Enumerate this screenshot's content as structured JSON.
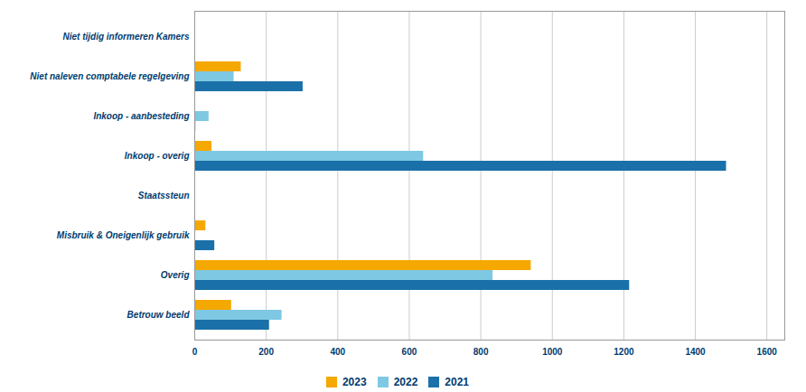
{
  "chart_data": {
    "type": "bar",
    "orientation": "horizontal",
    "categories": [
      "Betrouw beeld",
      "Overig",
      "Misbruik & Oneigenlijk gebruik",
      "Staatssteun",
      "Inkoop - overig",
      "Inkoop - aanbesteding",
      "Niet naleven comptabele regelgeving",
      "Niet tijdig informeren Kamers"
    ],
    "series": [
      {
        "name": "2023",
        "color": "#F5A800",
        "values": [
          103,
          941,
          31,
          0,
          48,
          0,
          130,
          0
        ]
      },
      {
        "name": "2022",
        "color": "#7EC8E3",
        "values": [
          244,
          834,
          0,
          0,
          640,
          40,
          110,
          0
        ]
      },
      {
        "name": "2021",
        "color": "#1A70A8",
        "values": [
          209,
          1216,
          56,
          0,
          1487,
          3,
          303,
          0
        ]
      }
    ],
    "xlim": [
      0,
      1650
    ],
    "xticks": [
      0,
      200,
      400,
      600,
      800,
      1000,
      1200,
      1400,
      1600
    ],
    "grid": true,
    "legend": "bottom"
  }
}
